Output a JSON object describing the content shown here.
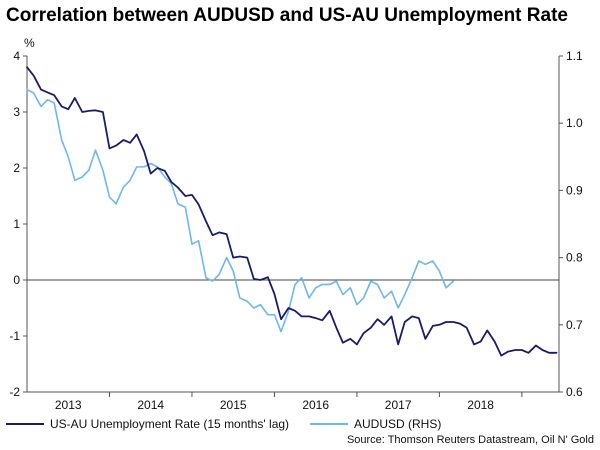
{
  "chart_data": {
    "type": "line",
    "title": "Correlation between AUDUSD and US-AU Unemployment Rate",
    "y_left_unit": "%",
    "y_left": {
      "min": -2,
      "max": 4,
      "ticks": [
        "-2",
        "-1",
        "0",
        "1",
        "2",
        "3",
        "4"
      ],
      "tick_values": [
        -2,
        -1,
        0,
        1,
        2,
        3,
        4
      ]
    },
    "y_right": {
      "min": 0.6,
      "max": 1.1,
      "ticks": [
        "0.6",
        "0.7",
        "0.8",
        "0.9",
        "1.0",
        "1.1"
      ],
      "tick_values": [
        0.6,
        0.7,
        0.8,
        0.9,
        1.0,
        1.1
      ]
    },
    "x": {
      "min": 2012.5,
      "max": 2018.95,
      "labels": [
        "2013",
        "2014",
        "2015",
        "2016",
        "2017",
        "2018"
      ],
      "label_positions": [
        2013,
        2014,
        2015,
        2016,
        2017,
        2018
      ]
    },
    "zero_line": true,
    "series": [
      {
        "name": "US-AU Unemployment Rate (15 months' lag)",
        "axis": "left",
        "color": "#1a1a6e",
        "points": [
          [
            2012.5,
            3.8
          ],
          [
            2012.58,
            3.65
          ],
          [
            2012.67,
            3.4
          ],
          [
            2012.75,
            3.35
          ],
          [
            2012.83,
            3.3
          ],
          [
            2012.92,
            3.1
          ],
          [
            2013.0,
            3.05
          ],
          [
            2013.08,
            3.25
          ],
          [
            2013.17,
            3.0
          ],
          [
            2013.25,
            3.02
          ],
          [
            2013.33,
            3.03
          ],
          [
            2013.42,
            3.0
          ],
          [
            2013.5,
            2.35
          ],
          [
            2013.58,
            2.4
          ],
          [
            2013.67,
            2.5
          ],
          [
            2013.75,
            2.45
          ],
          [
            2013.83,
            2.6
          ],
          [
            2013.92,
            2.3
          ],
          [
            2014.0,
            1.9
          ],
          [
            2014.08,
            2.0
          ],
          [
            2014.17,
            1.95
          ],
          [
            2014.25,
            1.75
          ],
          [
            2014.33,
            1.65
          ],
          [
            2014.42,
            1.5
          ],
          [
            2014.5,
            1.52
          ],
          [
            2014.58,
            1.35
          ],
          [
            2014.67,
            1.05
          ],
          [
            2014.75,
            0.8
          ],
          [
            2014.83,
            0.85
          ],
          [
            2014.92,
            0.82
          ],
          [
            2015.0,
            0.4
          ],
          [
            2015.08,
            0.42
          ],
          [
            2015.17,
            0.4
          ],
          [
            2015.25,
            0.02
          ],
          [
            2015.33,
            0.0
          ],
          [
            2015.42,
            0.05
          ],
          [
            2015.5,
            -0.25
          ],
          [
            2015.58,
            -0.7
          ],
          [
            2015.67,
            -0.5
          ],
          [
            2015.75,
            -0.55
          ],
          [
            2015.83,
            -0.65
          ],
          [
            2015.92,
            -0.65
          ],
          [
            2016.0,
            -0.68
          ],
          [
            2016.08,
            -0.72
          ],
          [
            2016.17,
            -0.55
          ],
          [
            2016.25,
            -0.85
          ],
          [
            2016.33,
            -1.12
          ],
          [
            2016.42,
            -1.05
          ],
          [
            2016.5,
            -1.15
          ],
          [
            2016.58,
            -0.95
          ],
          [
            2016.67,
            -0.85
          ],
          [
            2016.75,
            -0.7
          ],
          [
            2016.83,
            -0.8
          ],
          [
            2016.92,
            -0.65
          ],
          [
            2017.0,
            -1.15
          ],
          [
            2017.08,
            -0.75
          ],
          [
            2017.17,
            -0.65
          ],
          [
            2017.25,
            -0.68
          ],
          [
            2017.33,
            -1.05
          ],
          [
            2017.42,
            -0.82
          ],
          [
            2017.5,
            -0.8
          ],
          [
            2017.58,
            -0.75
          ],
          [
            2017.67,
            -0.75
          ],
          [
            2017.75,
            -0.78
          ],
          [
            2017.83,
            -0.85
          ],
          [
            2017.92,
            -1.15
          ],
          [
            2018.0,
            -1.1
          ],
          [
            2018.08,
            -0.9
          ],
          [
            2018.17,
            -1.1
          ],
          [
            2018.25,
            -1.35
          ],
          [
            2018.33,
            -1.28
          ],
          [
            2018.42,
            -1.25
          ],
          [
            2018.5,
            -1.25
          ],
          [
            2018.58,
            -1.3
          ],
          [
            2018.67,
            -1.17
          ],
          [
            2018.75,
            -1.25
          ],
          [
            2018.83,
            -1.3
          ],
          [
            2018.92,
            -1.3
          ]
        ]
      },
      {
        "name": "AUDUSD (RHS)",
        "axis": "right",
        "color": "#6cb8ec",
        "points": [
          [
            2012.5,
            1.05
          ],
          [
            2012.58,
            1.045
          ],
          [
            2012.67,
            1.025
          ],
          [
            2012.75,
            1.035
          ],
          [
            2012.83,
            1.03
          ],
          [
            2012.92,
            0.975
          ],
          [
            2013.0,
            0.95
          ],
          [
            2013.08,
            0.915
          ],
          [
            2013.17,
            0.92
          ],
          [
            2013.25,
            0.93
          ],
          [
            2013.33,
            0.96
          ],
          [
            2013.42,
            0.93
          ],
          [
            2013.5,
            0.89
          ],
          [
            2013.58,
            0.88
          ],
          [
            2013.67,
            0.905
          ],
          [
            2013.75,
            0.915
          ],
          [
            2013.83,
            0.935
          ],
          [
            2013.92,
            0.935
          ],
          [
            2014.0,
            0.94
          ],
          [
            2014.08,
            0.935
          ],
          [
            2014.17,
            0.92
          ],
          [
            2014.25,
            0.91
          ],
          [
            2014.33,
            0.88
          ],
          [
            2014.42,
            0.875
          ],
          [
            2014.5,
            0.82
          ],
          [
            2014.58,
            0.825
          ],
          [
            2014.67,
            0.77
          ],
          [
            2014.75,
            0.765
          ],
          [
            2014.83,
            0.775
          ],
          [
            2014.92,
            0.8
          ],
          [
            2015.0,
            0.78
          ],
          [
            2015.08,
            0.74
          ],
          [
            2015.17,
            0.735
          ],
          [
            2015.25,
            0.725
          ],
          [
            2015.33,
            0.73
          ],
          [
            2015.42,
            0.715
          ],
          [
            2015.5,
            0.715
          ],
          [
            2015.58,
            0.69
          ],
          [
            2015.67,
            0.72
          ],
          [
            2015.75,
            0.76
          ],
          [
            2015.83,
            0.77
          ],
          [
            2015.92,
            0.74
          ],
          [
            2016.0,
            0.755
          ],
          [
            2016.08,
            0.76
          ],
          [
            2016.17,
            0.76
          ],
          [
            2016.25,
            0.765
          ],
          [
            2016.33,
            0.745
          ],
          [
            2016.42,
            0.755
          ],
          [
            2016.5,
            0.73
          ],
          [
            2016.58,
            0.74
          ],
          [
            2016.67,
            0.765
          ],
          [
            2016.75,
            0.76
          ],
          [
            2016.83,
            0.74
          ],
          [
            2016.92,
            0.75
          ],
          [
            2017.0,
            0.725
          ],
          [
            2017.08,
            0.745
          ],
          [
            2017.17,
            0.77
          ],
          [
            2017.25,
            0.795
          ],
          [
            2017.33,
            0.79
          ],
          [
            2017.42,
            0.795
          ],
          [
            2017.5,
            0.78
          ],
          [
            2017.58,
            0.755
          ],
          [
            2017.67,
            0.765
          ]
        ]
      }
    ],
    "legend": {
      "position": "bottom-left",
      "entries": [
        "US-AU Unemployment Rate (15 months' lag)",
        "AUDUSD (RHS)"
      ]
    },
    "source": "Source: Thomson Reuters Datastream, Oil N' Gold"
  }
}
